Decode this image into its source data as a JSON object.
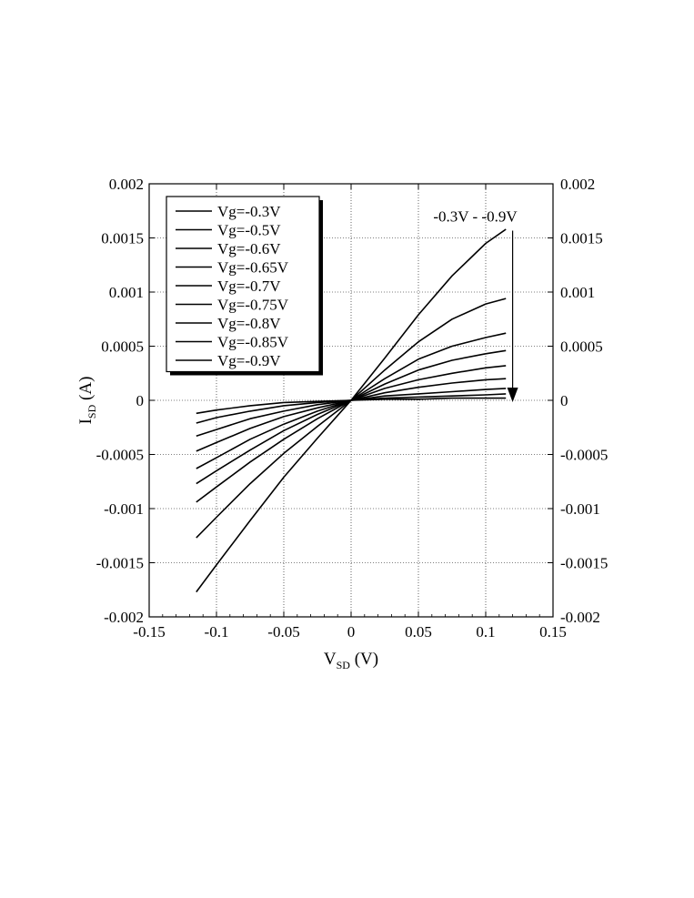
{
  "chart_data": {
    "type": "line",
    "title": "",
    "xlabel_main": "V",
    "xlabel_sub": "SD",
    "xlabel_unit": " (V)",
    "ylabel_main": "I",
    "ylabel_sub": "SD",
    "ylabel_unit": " (A)",
    "xlim": [
      -0.15,
      0.15
    ],
    "ylim": [
      -0.002,
      0.002
    ],
    "x_ticks": [
      -0.15,
      -0.1,
      -0.05,
      0,
      0.05,
      0.1,
      0.15
    ],
    "x_tick_labels": [
      "-0.15",
      "-0.1",
      "-0.05",
      "0",
      "0.05",
      "0.1",
      "0.15"
    ],
    "y_ticks": [
      -0.002,
      -0.0015,
      -0.001,
      -0.0005,
      0,
      0.0005,
      0.001,
      0.0015,
      0.002
    ],
    "y_tick_labels": [
      "-0.002",
      "-0.0015",
      "-0.001",
      "-0.0005",
      "0",
      "0.0005",
      "0.001",
      "0.0015",
      "0.002"
    ],
    "right_axis_labels": true,
    "grid": true,
    "legend_position": "top-left",
    "x": [
      -0.115,
      -0.1,
      -0.075,
      -0.05,
      -0.025,
      0,
      0.025,
      0.05,
      0.075,
      0.1,
      0.115
    ],
    "series": [
      {
        "name": "Vg=-0.3V",
        "values": [
          -0.00177,
          -0.00152,
          -0.00111,
          -0.00071,
          -0.00035,
          0,
          0.00039,
          0.00079,
          0.00115,
          0.00145,
          0.00158
        ]
      },
      {
        "name": "Vg=-0.5V",
        "values": [
          -0.00127,
          -0.00108,
          -0.00077,
          -0.00049,
          -0.00024,
          0,
          0.00028,
          0.00054,
          0.00075,
          0.00089,
          0.00094
        ]
      },
      {
        "name": "Vg=-0.6V",
        "values": [
          -0.00094,
          -0.0008,
          -0.00057,
          -0.00036,
          -0.00017,
          0,
          0.0002,
          0.00038,
          0.0005,
          0.00058,
          0.00062
        ]
      },
      {
        "name": "Vg=-0.65V",
        "values": [
          -0.00077,
          -0.00065,
          -0.00046,
          -0.00028,
          -0.00013,
          0,
          0.00015,
          0.00028,
          0.00037,
          0.00043,
          0.00046
        ]
      },
      {
        "name": "Vg=-0.7V",
        "values": [
          -0.00063,
          -0.00053,
          -0.00036,
          -0.00022,
          -0.0001,
          0,
          0.00011,
          0.00019,
          0.00025,
          0.0003,
          0.00032
        ]
      },
      {
        "name": "Vg=-0.75V",
        "values": [
          -0.00047,
          -0.00039,
          -0.00026,
          -0.00015,
          -7e-05,
          0,
          7e-05,
          0.00012,
          0.00016,
          0.00019,
          0.0002
        ]
      },
      {
        "name": "Vg=-0.8V",
        "values": [
          -0.00033,
          -0.00027,
          -0.00017,
          -0.0001,
          -4e-05,
          0,
          4e-05,
          6e-05,
          8e-05,
          0.0001,
          0.00011
        ]
      },
      {
        "name": "Vg=-0.85V",
        "values": [
          -0.00021,
          -0.00016,
          -0.0001,
          -5e-05,
          -2e-05,
          0,
          2e-05,
          3e-05,
          4e-05,
          5e-05,
          6e-05
        ]
      },
      {
        "name": "Vg=-0.9V",
        "values": [
          -0.00012,
          -9e-05,
          -5e-05,
          -2e-05,
          -1e-05,
          0,
          1e-05,
          1e-05,
          2e-05,
          2e-05,
          2e-05
        ]
      }
    ],
    "annotation": {
      "text": "-0.3V - -0.9V",
      "arrow_x": 0.12,
      "arrow_y_start": 0.00155,
      "arrow_y_end": 0.0
    },
    "colors": {
      "line": "#000000",
      "grid": "#000000",
      "background": "#ffffff"
    }
  }
}
